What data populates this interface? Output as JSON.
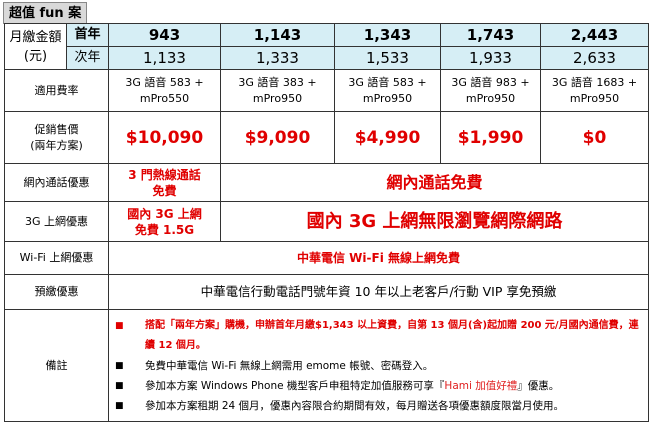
{
  "title": "超值 fun 案",
  "monthly": {
    "label": "月繳金額(元)",
    "first_year_label": "首年",
    "second_year_label": "次年",
    "first_year": [
      "943",
      "1,143",
      "1,343",
      "1,743",
      "2,443"
    ],
    "second_year": [
      "1,133",
      "1,333",
      "1,533",
      "1,933",
      "2,633"
    ]
  },
  "rate": {
    "label": "適用費率",
    "values": [
      [
        "3G 語音 583 +",
        "mPro550"
      ],
      [
        "3G 語音 383 +",
        "mPro950"
      ],
      [
        "3G 語音 583 +",
        "mPro950"
      ],
      [
        "3G 語音 983 +",
        "mPro950"
      ],
      [
        "3G 語音 1683 +",
        "mPro950"
      ]
    ]
  },
  "price": {
    "label": "促銷售價",
    "sublabel": "(兩年方案)",
    "values": [
      "$10,090",
      "$9,090",
      "$4,990",
      "$1,990",
      "$0"
    ]
  },
  "onnet": {
    "label": "網內通話優惠",
    "first": [
      "3 門熱線通話",
      "免費"
    ],
    "rest": "網內通話免費"
  },
  "data3g": {
    "label": "3G 上網優惠",
    "first": [
      "國內 3G 上網",
      "免費 1.5G"
    ],
    "rest": "國內 3G 上網無限瀏覽網際網路"
  },
  "wifi": {
    "label": "Wi-Fi 上網優惠",
    "value": "中華電信 Wi-Fi 無線上網免費"
  },
  "prepay": {
    "label": "預繳優惠",
    "value": "中華電信行動電話門號年資 10 年以上老客戶/行動 VIP 享免預繳"
  },
  "notes": {
    "label": "備註",
    "items": [
      {
        "text": "搭配「兩年方案」購機，申辦首年月繳$1,343 以上資費，自第 13 個月(含)起加贈 200 元/月國內通信費，連續 12 個月。"
      },
      {
        "text": "免費中華電信 Wi-Fi 無線上網需用 emome 帳號、密碼登入。"
      },
      {
        "pre": "參加本方案 Windows Phone 機型客戶申租特定加值服務可享『",
        "hl": "Hami 加值好禮",
        "post": "』優惠。"
      },
      {
        "text": "參加本方案租期 24 個月，優惠內容限合約期間有效，每月贈送各項優惠額度限當月使用。"
      }
    ]
  },
  "colors": {
    "header_fill": "#d6eef5",
    "accent_red": "#e00000"
  }
}
